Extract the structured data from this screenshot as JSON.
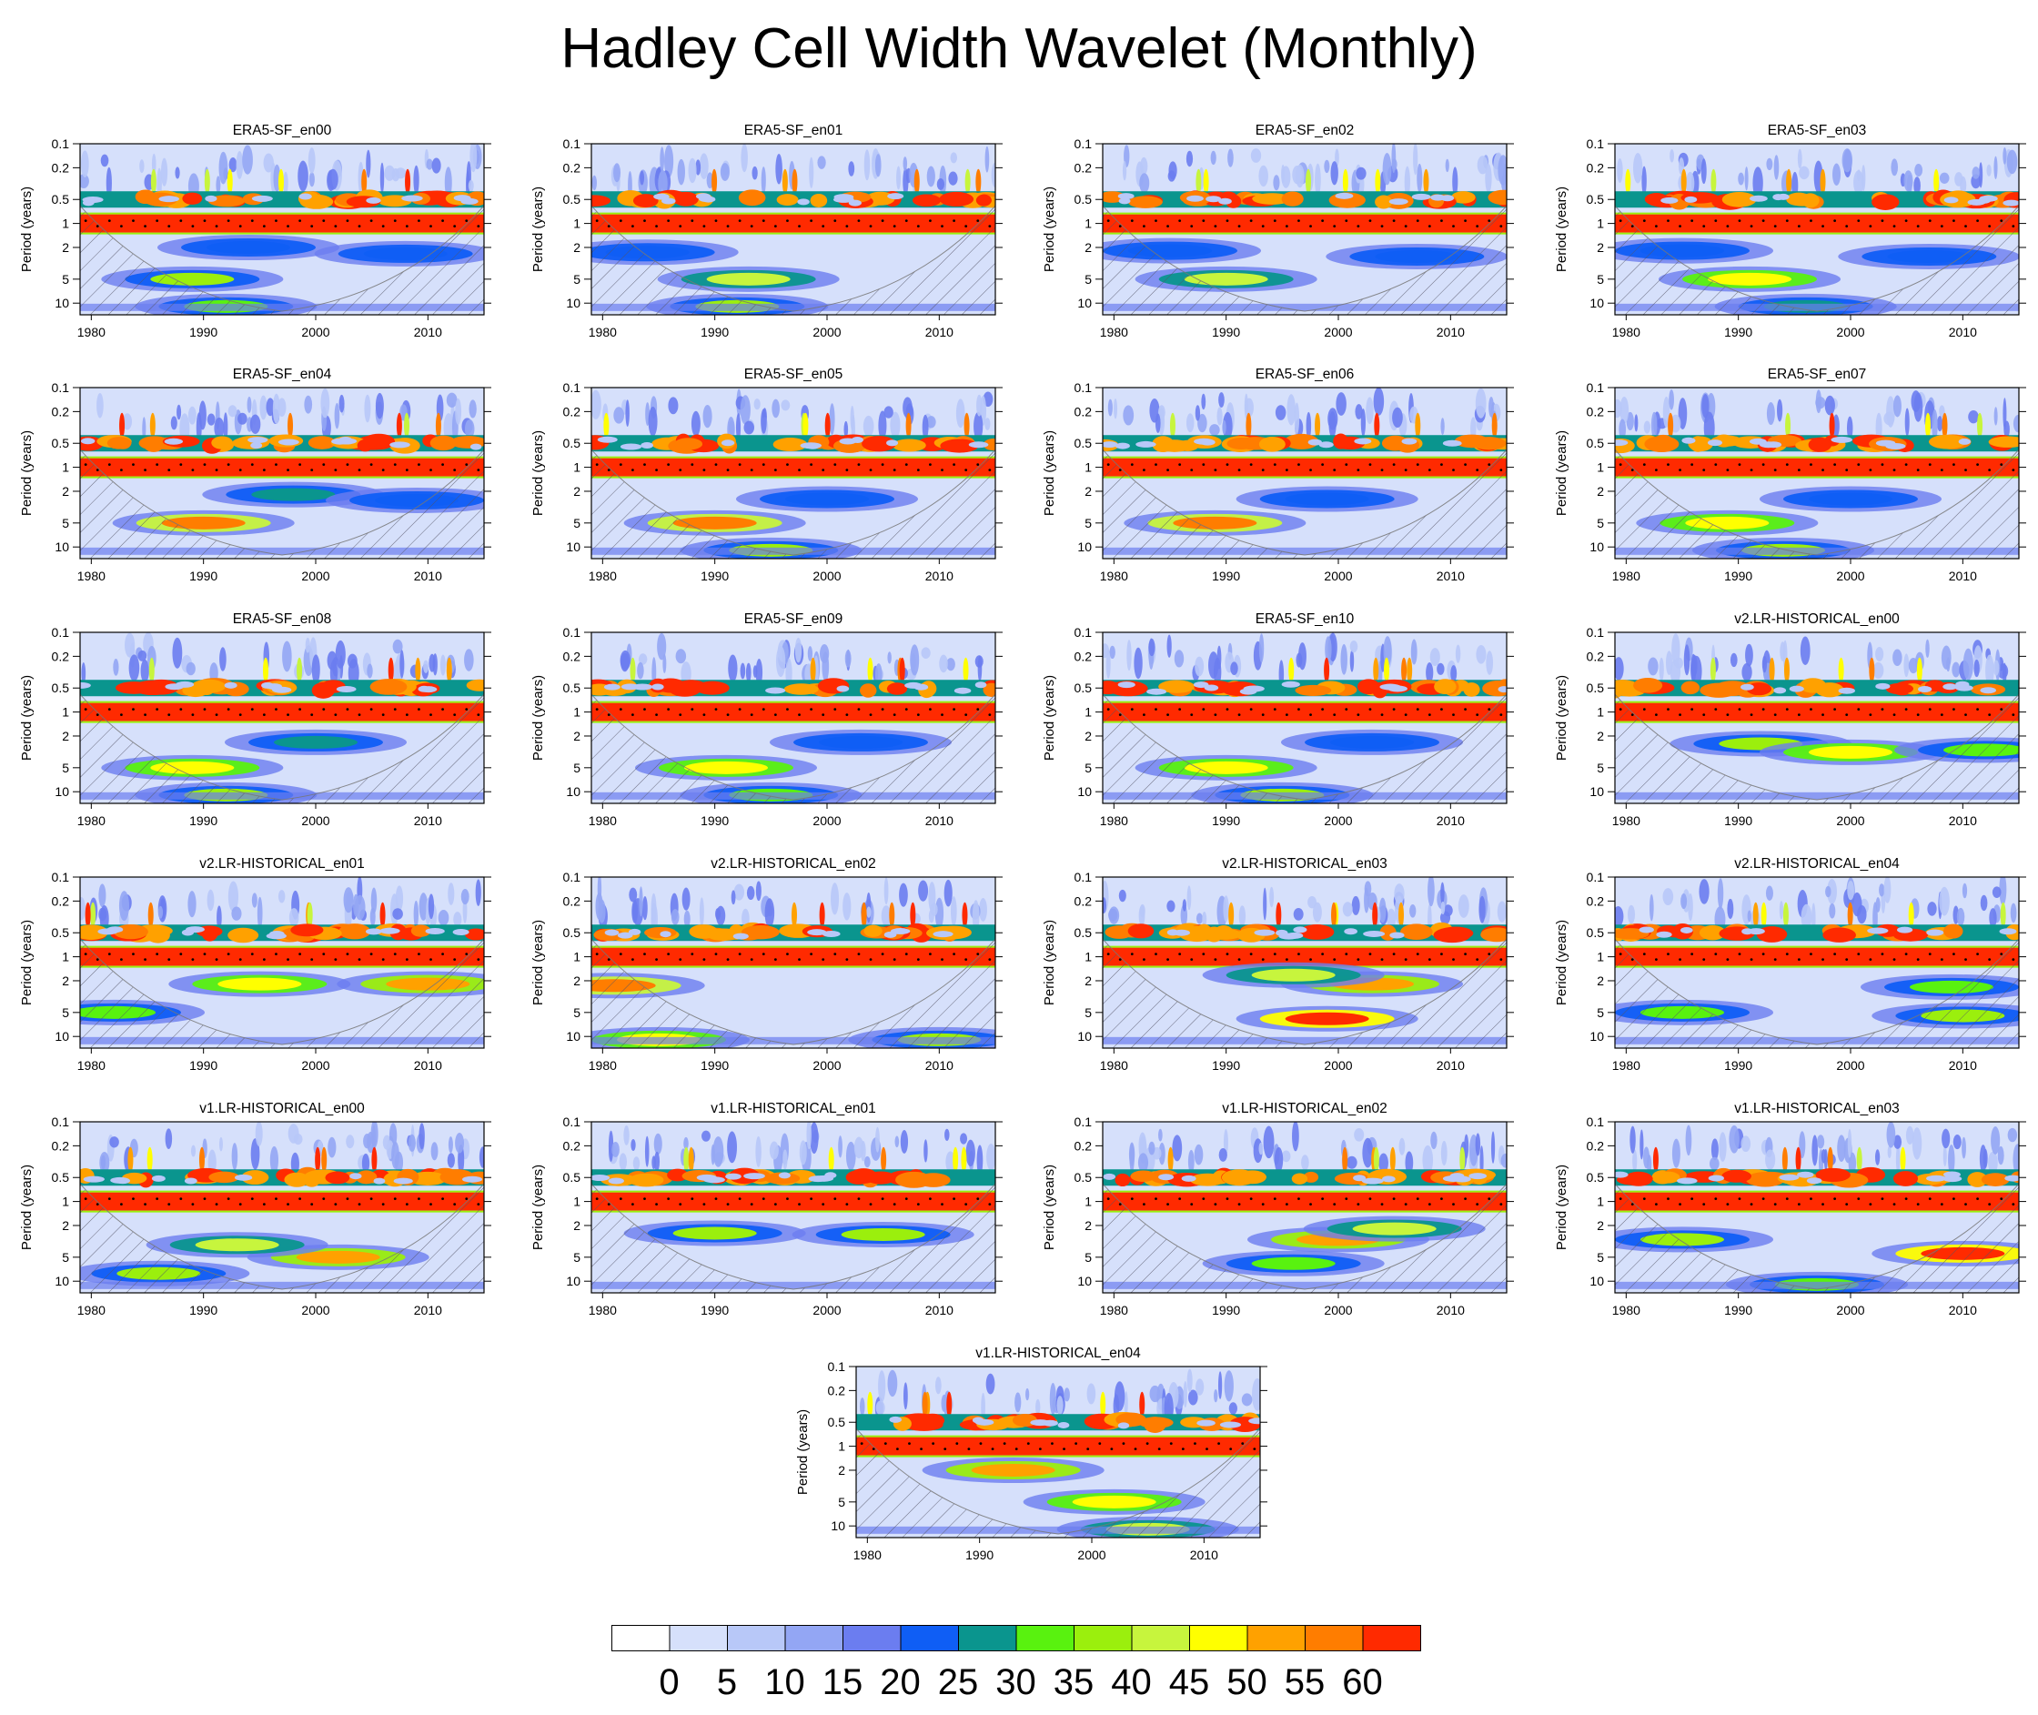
{
  "figure": {
    "title": "Hadley Cell Width Wavelet (Monthly)"
  },
  "chart_data": {
    "type": "heatmap",
    "title": "Hadley Cell Width Wavelet (Monthly)",
    "ylabel": "Period (years)",
    "x_ticks": [
      "1980",
      "1990",
      "2000",
      "2010"
    ],
    "x_range": [
      1979,
      2015
    ],
    "y_ticks": [
      "0.1",
      "0.2",
      "0.5",
      "1",
      "2",
      "5",
      "10"
    ],
    "y_range": [
      0.1,
      14
    ],
    "y_scale": "log",
    "colorbar": {
      "labels": [
        "0",
        "5",
        "10",
        "15",
        "20",
        "25",
        "30",
        "35",
        "40",
        "45",
        "50",
        "55",
        "60"
      ],
      "colors": [
        "#ffffff",
        "#d6e0fb",
        "#b8c8f8",
        "#93a6f4",
        "#6b7df0",
        "#0f5ef5",
        "#0a958e",
        "#59f20f",
        "#9bef0d",
        "#c7f53d",
        "#ffff00",
        "#ffa100",
        "#ff7d00",
        "#ff2a00"
      ]
    },
    "panels": [
      {
        "title": "ERA5-SF_en00",
        "features": [
          {
            "t": 1989,
            "p": 5,
            "level": 8
          },
          {
            "t": 1994,
            "p": 2,
            "level": 5
          },
          {
            "t": 2008,
            "p": 2.4,
            "level": 5
          },
          {
            "t": 1992,
            "p": 11,
            "level": 7
          }
        ]
      },
      {
        "title": "ERA5-SF_en01",
        "features": [
          {
            "t": 1993,
            "p": 5,
            "level": 9
          },
          {
            "t": 1984,
            "p": 2.3,
            "level": 5
          },
          {
            "t": 1992,
            "p": 11,
            "level": 8
          }
        ]
      },
      {
        "title": "ERA5-SF_en02",
        "features": [
          {
            "t": 1990,
            "p": 5,
            "level": 9
          },
          {
            "t": 1985,
            "p": 2.2,
            "level": 5
          },
          {
            "t": 2007,
            "p": 2.6,
            "level": 5
          }
        ]
      },
      {
        "title": "ERA5-SF_en03",
        "features": [
          {
            "t": 1991,
            "p": 5,
            "level": 10
          },
          {
            "t": 1985,
            "p": 2.2,
            "level": 5
          },
          {
            "t": 2007,
            "p": 2.6,
            "level": 5
          },
          {
            "t": 1996,
            "p": 11,
            "level": 6
          }
        ]
      },
      {
        "title": "ERA5-SF_en04",
        "features": [
          {
            "t": 1990,
            "p": 5,
            "level": 12
          },
          {
            "t": 1998,
            "p": 2.2,
            "level": 6
          },
          {
            "t": 2009,
            "p": 2.6,
            "level": 5
          }
        ]
      },
      {
        "title": "ERA5-SF_en05",
        "features": [
          {
            "t": 1990,
            "p": 5,
            "level": 12
          },
          {
            "t": 2000,
            "p": 2.5,
            "level": 5
          },
          {
            "t": 1995,
            "p": 11,
            "level": 8
          }
        ]
      },
      {
        "title": "ERA5-SF_en06",
        "features": [
          {
            "t": 1989,
            "p": 5,
            "level": 12
          },
          {
            "t": 1999,
            "p": 2.5,
            "level": 5
          }
        ]
      },
      {
        "title": "ERA5-SF_en07",
        "features": [
          {
            "t": 1989,
            "p": 5,
            "level": 10
          },
          {
            "t": 2000,
            "p": 2.5,
            "level": 5
          },
          {
            "t": 1994,
            "p": 11,
            "level": 8
          }
        ]
      },
      {
        "title": "ERA5-SF_en08",
        "features": [
          {
            "t": 1989,
            "p": 5,
            "level": 10
          },
          {
            "t": 2000,
            "p": 2.4,
            "level": 6
          },
          {
            "t": 1992,
            "p": 11,
            "level": 8
          }
        ]
      },
      {
        "title": "ERA5-SF_en09",
        "features": [
          {
            "t": 1991,
            "p": 5,
            "level": 10
          },
          {
            "t": 2003,
            "p": 2.4,
            "level": 5
          },
          {
            "t": 1995,
            "p": 11,
            "level": 7
          }
        ]
      },
      {
        "title": "ERA5-SF_en10",
        "features": [
          {
            "t": 1990,
            "p": 5,
            "level": 10
          },
          {
            "t": 2003,
            "p": 2.4,
            "level": 5
          },
          {
            "t": 1995,
            "p": 11,
            "level": 8
          }
        ]
      },
      {
        "title": "v2.LR-HISTORICAL_en00",
        "features": [
          {
            "t": 1992,
            "p": 2.5,
            "level": 8
          },
          {
            "t": 2000,
            "p": 3.2,
            "level": 10
          },
          {
            "t": 2012,
            "p": 3,
            "level": 7
          }
        ]
      },
      {
        "title": "v2.LR-HISTORICAL_en01",
        "features": [
          {
            "t": 1995,
            "p": 2.2,
            "level": 10
          },
          {
            "t": 2010,
            "p": 2.2,
            "level": 11
          },
          {
            "t": 1982,
            "p": 5,
            "level": 7
          }
        ]
      },
      {
        "title": "v2.LR-HISTORICAL_en02",
        "features": [
          {
            "t": 1981,
            "p": 2.3,
            "level": 12
          },
          {
            "t": 1985,
            "p": 11,
            "level": 10
          },
          {
            "t": 2010,
            "p": 11,
            "level": 8
          }
        ]
      },
      {
        "title": "v2.LR-HISTORICAL_en03",
        "features": [
          {
            "t": 1999,
            "p": 6,
            "level": 13
          },
          {
            "t": 2003,
            "p": 2.2,
            "level": 11
          },
          {
            "t": 1996,
            "p": 1.7,
            "level": 9
          }
        ]
      },
      {
        "title": "v2.LR-HISTORICAL_en04",
        "features": [
          {
            "t": 2009,
            "p": 2.4,
            "level": 7
          },
          {
            "t": 1985,
            "p": 5,
            "level": 7
          },
          {
            "t": 2010,
            "p": 5.5,
            "level": 8
          }
        ]
      },
      {
        "title": "v1.LR-HISTORICAL_en00",
        "features": [
          {
            "t": 2002,
            "p": 5,
            "level": 11
          },
          {
            "t": 1993,
            "p": 3.5,
            "level": 9
          },
          {
            "t": 1986,
            "p": 8,
            "level": 8
          }
        ]
      },
      {
        "title": "v1.LR-HISTORICAL_en01",
        "features": [
          {
            "t": 1990,
            "p": 2.5,
            "level": 8
          },
          {
            "t": 2005,
            "p": 2.6,
            "level": 8
          }
        ]
      },
      {
        "title": "v1.LR-HISTORICAL_en02",
        "features": [
          {
            "t": 2000,
            "p": 3,
            "level": 11
          },
          {
            "t": 2005,
            "p": 2.2,
            "level": 9
          },
          {
            "t": 1996,
            "p": 6,
            "level": 7
          }
        ]
      },
      {
        "title": "v1.LR-HISTORICAL_en03",
        "features": [
          {
            "t": 2010,
            "p": 4.5,
            "level": 13
          },
          {
            "t": 1985,
            "p": 3,
            "level": 8
          },
          {
            "t": 1997,
            "p": 11,
            "level": 7
          }
        ]
      },
      {
        "title": "v1.LR-HISTORICAL_en04",
        "features": [
          {
            "t": 1993,
            "p": 2,
            "level": 11
          },
          {
            "t": 2002,
            "p": 5,
            "level": 10
          },
          {
            "t": 2005,
            "p": 11,
            "level": 9
          }
        ]
      }
    ]
  }
}
